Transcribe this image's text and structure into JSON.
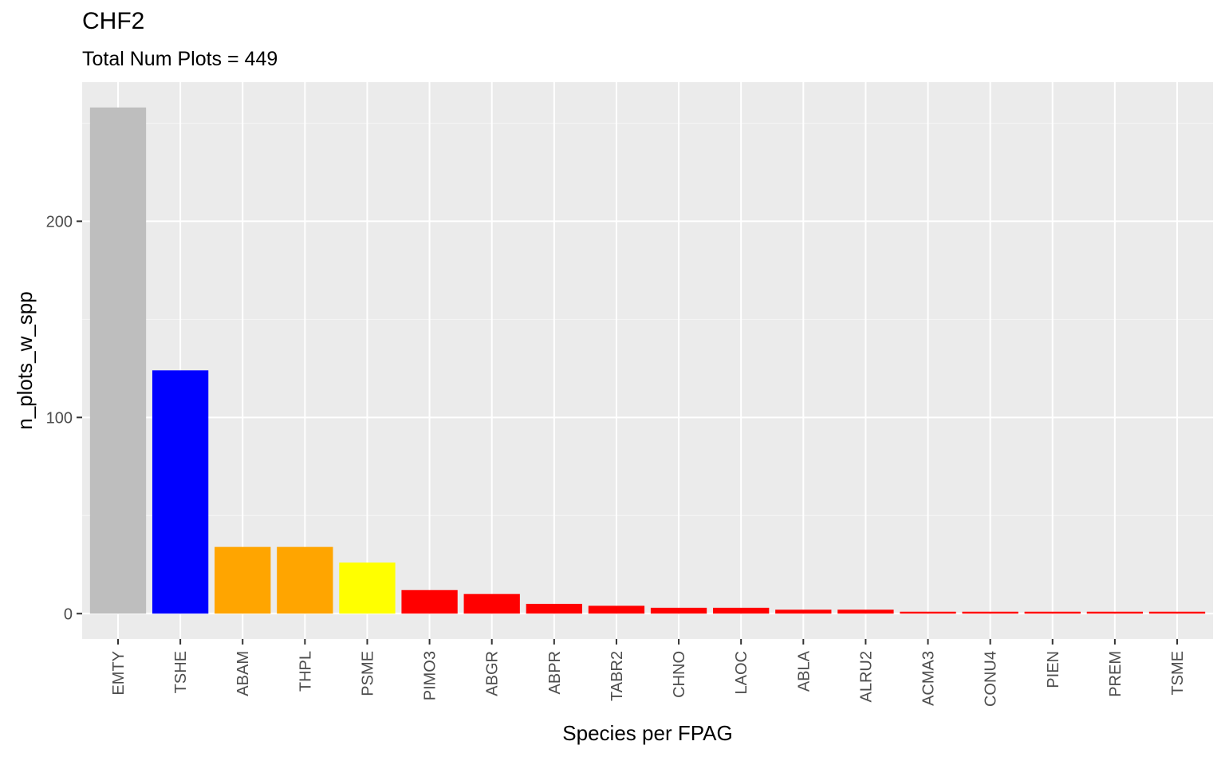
{
  "chart_data": {
    "type": "bar",
    "title": "CHF2",
    "subtitle": "Total Num Plots = 449",
    "xlabel": "Species per FPAG",
    "ylabel": "n_plots_w_spp",
    "categories": [
      "EMTY",
      "TSHE",
      "ABAM",
      "THPL",
      "PSME",
      "PIMO3",
      "ABGR",
      "ABPR",
      "TABR2",
      "CHNO",
      "LAOC",
      "ABLA",
      "ALRU2",
      "ACMA3",
      "CONU4",
      "PIEN",
      "PREM",
      "TSME"
    ],
    "values": [
      258,
      124,
      34,
      34,
      26,
      12,
      10,
      5,
      4,
      3,
      3,
      2,
      2,
      1,
      1,
      1,
      1,
      1
    ],
    "colors": [
      "#BEBEBE",
      "#0000FF",
      "#FFA500",
      "#FFA500",
      "#FFFF00",
      "#FF0000",
      "#FF0000",
      "#FF0000",
      "#FF0000",
      "#FF0000",
      "#FF0000",
      "#FF0000",
      "#FF0000",
      "#FF0000",
      "#FF0000",
      "#FF0000",
      "#FF0000",
      "#FF0000"
    ],
    "ylim": [
      -12.9,
      270.9
    ],
    "yticks": [
      0,
      100,
      200
    ],
    "grid": true,
    "legend": "none"
  },
  "style": {
    "panel_bg": "#EBEBEB",
    "grid_major": "#FFFFFF",
    "tick_text": "#4D4D4D"
  }
}
